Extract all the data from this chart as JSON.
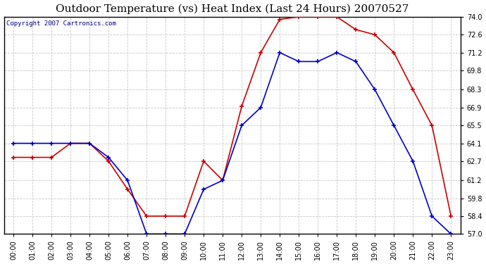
{
  "title": "Outdoor Temperature (vs) Heat Index (Last 24 Hours) 20070527",
  "copyright": "Copyright 2007 Cartronics.com",
  "hours": [
    "00:00",
    "01:00",
    "02:00",
    "03:00",
    "04:00",
    "05:00",
    "06:00",
    "07:00",
    "08:00",
    "09:00",
    "10:00",
    "11:00",
    "12:00",
    "13:00",
    "14:00",
    "15:00",
    "16:00",
    "17:00",
    "18:00",
    "19:00",
    "20:00",
    "21:00",
    "22:00",
    "23:00"
  ],
  "temp": [
    64.1,
    64.1,
    64.1,
    64.1,
    64.1,
    63.0,
    61.2,
    57.0,
    57.0,
    57.0,
    60.5,
    61.2,
    65.5,
    66.9,
    71.2,
    70.5,
    70.5,
    71.2,
    70.5,
    68.3,
    65.5,
    62.7,
    58.4,
    57.0
  ],
  "heat_index": [
    63.0,
    63.0,
    63.0,
    64.1,
    64.1,
    62.7,
    60.5,
    58.4,
    58.4,
    58.4,
    62.7,
    61.2,
    67.0,
    71.2,
    73.8,
    74.0,
    74.0,
    74.0,
    73.0,
    72.6,
    71.2,
    68.3,
    65.5,
    58.4
  ],
  "ylim_min": 57.0,
  "ylim_max": 74.0,
  "yticks": [
    57.0,
    58.4,
    59.8,
    61.2,
    62.7,
    64.1,
    65.5,
    66.9,
    68.3,
    69.8,
    71.2,
    72.6,
    74.0
  ],
  "temp_color": "#0000cc",
  "heat_color": "#cc0000",
  "bg_color": "#ffffff",
  "plot_bg_color": "#ffffff",
  "grid_color": "#c8c8c8",
  "title_fontsize": 11,
  "tick_fontsize": 7,
  "copyright_color": "#000080"
}
